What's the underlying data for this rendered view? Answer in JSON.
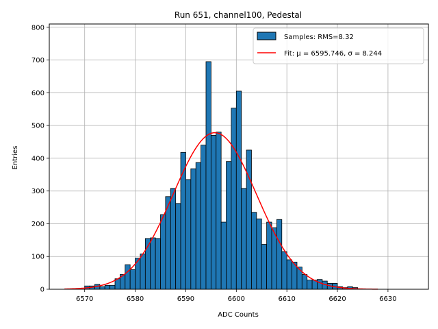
{
  "chart_data": {
    "type": "bar",
    "title": "Run 651, channel100, Pedestal",
    "xlabel": "ADC Counts",
    "ylabel": "Entries",
    "xlim": [
      6563,
      6638
    ],
    "ylim": [
      0,
      810
    ],
    "xticks": [
      6570,
      6580,
      6590,
      6600,
      6610,
      6620,
      6630
    ],
    "yticks": [
      0,
      100,
      200,
      300,
      400,
      500,
      600,
      700,
      800
    ],
    "grid": true,
    "legend_position": "top-right",
    "colors": {
      "bars": "#1f77b4",
      "bar_edge": "#000000",
      "fit": "#ff0000",
      "grid": "#b0b0b0"
    },
    "histogram": {
      "name": "Samples: RMS=8.32",
      "bin_width": 1,
      "bin_edges_start": 6570,
      "values": [
        10,
        10,
        15,
        8,
        12,
        12,
        32,
        45,
        75,
        60,
        95,
        108,
        155,
        157,
        155,
        228,
        283,
        308,
        262,
        418,
        335,
        368,
        387,
        440,
        695,
        470,
        480,
        205,
        390,
        553,
        605,
        308,
        425,
        235,
        215,
        137,
        205,
        188,
        213,
        115,
        90,
        83,
        68,
        45,
        28,
        28,
        30,
        25,
        18,
        18,
        8,
        5,
        8,
        5
      ]
    },
    "fit": {
      "name": "Fit: μ = 6595.746, σ = 8.244",
      "mu": 6595.746,
      "sigma": 8.244,
      "amplitude": 478,
      "x_range": [
        6566,
        6628
      ]
    }
  }
}
